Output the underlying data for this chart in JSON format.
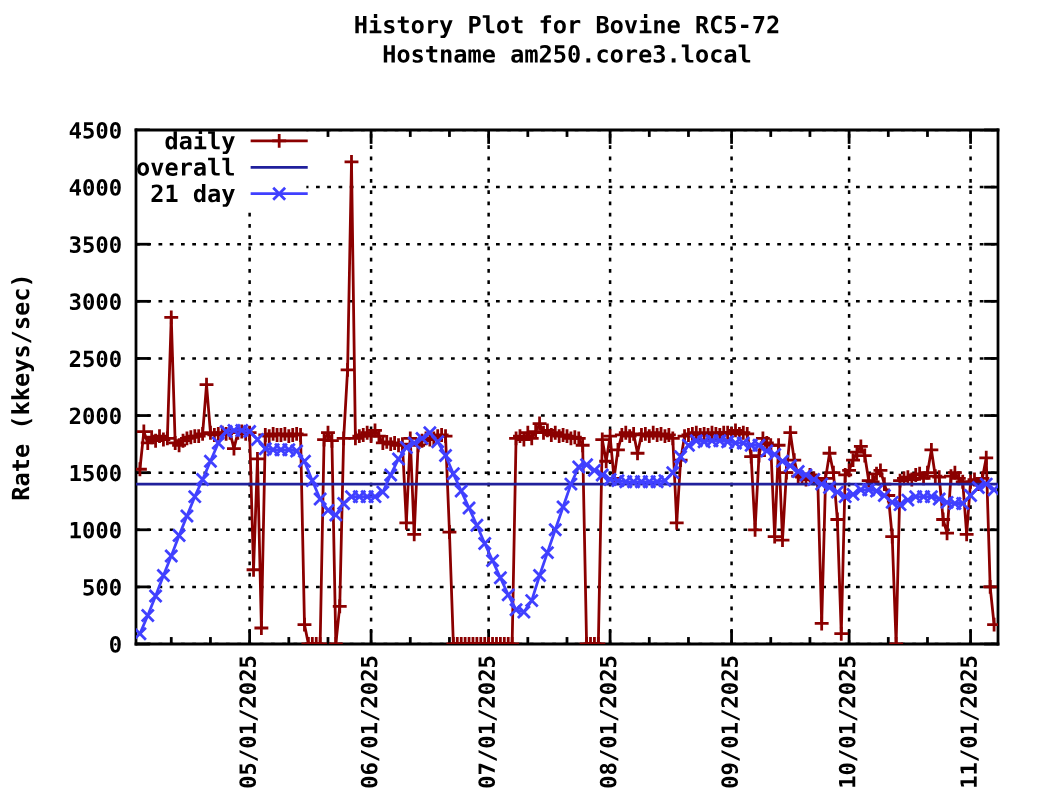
{
  "chart_data": {
    "type": "line",
    "title": "History Plot for Bovine RC5-72",
    "subtitle": "Hostname am250.core3.local",
    "ylabel": "Rate (kkeys/sec)",
    "xlim": [
      "2025-04-02",
      "2025-11-08"
    ],
    "xticks": [
      {
        "value": "2025-04-11",
        "label": null
      },
      {
        "value": "2025-04-21",
        "label": null
      },
      {
        "value": "2025-05-01",
        "label": "05/01/2025"
      },
      {
        "value": "2025-05-11",
        "label": null
      },
      {
        "value": "2025-05-21",
        "label": null
      },
      {
        "value": "2025-06-01",
        "label": "06/01/2025"
      },
      {
        "value": "2025-06-11",
        "label": null
      },
      {
        "value": "2025-06-21",
        "label": null
      },
      {
        "value": "2025-07-01",
        "label": "07/01/2025"
      },
      {
        "value": "2025-07-11",
        "label": null
      },
      {
        "value": "2025-07-21",
        "label": null
      },
      {
        "value": "2025-08-01",
        "label": "08/01/2025"
      },
      {
        "value": "2025-08-11",
        "label": null
      },
      {
        "value": "2025-08-21",
        "label": null
      },
      {
        "value": "2025-09-01",
        "label": "09/01/2025"
      },
      {
        "value": "2025-09-11",
        "label": null
      },
      {
        "value": "2025-09-21",
        "label": null
      },
      {
        "value": "2025-10-01",
        "label": "10/01/2025"
      },
      {
        "value": "2025-10-11",
        "label": null
      },
      {
        "value": "2025-10-21",
        "label": null
      },
      {
        "value": "2025-11-01",
        "label": "11/01/2025"
      }
    ],
    "ylim": [
      0,
      4500
    ],
    "yticks": [
      0,
      500,
      1000,
      1500,
      2000,
      2500,
      3000,
      3500,
      4000,
      4500
    ],
    "grid": true,
    "legend": "top left",
    "series": [
      {
        "name": "daily",
        "color": "#8b0000",
        "marker": "plus",
        "line_style": "solid",
        "x": [
          "2025-04-03",
          "2025-04-04",
          "2025-04-05",
          "2025-04-06",
          "2025-04-07",
          "2025-04-08",
          "2025-04-09",
          "2025-04-10",
          "2025-04-11",
          "2025-04-12",
          "2025-04-13",
          "2025-04-14",
          "2025-04-15",
          "2025-04-16",
          "2025-04-17",
          "2025-04-18",
          "2025-04-19",
          "2025-04-20",
          "2025-04-21",
          "2025-04-22",
          "2025-04-23",
          "2025-04-24",
          "2025-04-25",
          "2025-04-26",
          "2025-04-27",
          "2025-04-28",
          "2025-04-29",
          "2025-04-30",
          "2025-05-01",
          "2025-05-02",
          "2025-05-03",
          "2025-05-04",
          "2025-05-05",
          "2025-05-06",
          "2025-05-07",
          "2025-05-08",
          "2025-05-09",
          "2025-05-10",
          "2025-05-11",
          "2025-05-12",
          "2025-05-13",
          "2025-05-14",
          "2025-05-15",
          "2025-05-16",
          "2025-05-17",
          "2025-05-18",
          "2025-05-19",
          "2025-05-20",
          "2025-05-21",
          "2025-05-22",
          "2025-05-23",
          "2025-05-24",
          "2025-05-25",
          "2025-05-26",
          "2025-05-27",
          "2025-05-28",
          "2025-05-29",
          "2025-05-30",
          "2025-05-31",
          "2025-06-01",
          "2025-06-02",
          "2025-06-03",
          "2025-06-04",
          "2025-06-05",
          "2025-06-06",
          "2025-06-07",
          "2025-06-08",
          "2025-06-09",
          "2025-06-10",
          "2025-06-11",
          "2025-06-12",
          "2025-06-13",
          "2025-06-14",
          "2025-06-15",
          "2025-06-16",
          "2025-06-17",
          "2025-06-18",
          "2025-06-19",
          "2025-06-20",
          "2025-06-21",
          "2025-06-22",
          "2025-06-23",
          "2025-06-24",
          "2025-06-25",
          "2025-06-26",
          "2025-06-27",
          "2025-06-28",
          "2025-06-29",
          "2025-06-30",
          "2025-07-01",
          "2025-07-02",
          "2025-07-03",
          "2025-07-04",
          "2025-07-05",
          "2025-07-06",
          "2025-07-07",
          "2025-07-08",
          "2025-07-09",
          "2025-07-10",
          "2025-07-11",
          "2025-07-12",
          "2025-07-13",
          "2025-07-14",
          "2025-07-15",
          "2025-07-16",
          "2025-07-17",
          "2025-07-18",
          "2025-07-19",
          "2025-07-20",
          "2025-07-21",
          "2025-07-22",
          "2025-07-23",
          "2025-07-24",
          "2025-07-25",
          "2025-07-26",
          "2025-07-27",
          "2025-07-28",
          "2025-07-29",
          "2025-07-30",
          "2025-07-31",
          "2025-08-01",
          "2025-08-02",
          "2025-08-03",
          "2025-08-04",
          "2025-08-05",
          "2025-08-06",
          "2025-08-07",
          "2025-08-08",
          "2025-08-09",
          "2025-08-10",
          "2025-08-11",
          "2025-08-12",
          "2025-08-13",
          "2025-08-14",
          "2025-08-15",
          "2025-08-16",
          "2025-08-17",
          "2025-08-18",
          "2025-08-19",
          "2025-08-20",
          "2025-08-21",
          "2025-08-22",
          "2025-08-23",
          "2025-08-24",
          "2025-08-25",
          "2025-08-26",
          "2025-08-27",
          "2025-08-28",
          "2025-08-29",
          "2025-08-30",
          "2025-08-31",
          "2025-09-01",
          "2025-09-02",
          "2025-09-03",
          "2025-09-04",
          "2025-09-05",
          "2025-09-06",
          "2025-09-07",
          "2025-09-08",
          "2025-09-09",
          "2025-09-10",
          "2025-09-11",
          "2025-09-12",
          "2025-09-13",
          "2025-09-14",
          "2025-09-15",
          "2025-09-16",
          "2025-09-17",
          "2025-09-18",
          "2025-09-19",
          "2025-09-20",
          "2025-09-21",
          "2025-09-22",
          "2025-09-23",
          "2025-09-24",
          "2025-09-25",
          "2025-09-26",
          "2025-09-27",
          "2025-09-28",
          "2025-09-29",
          "2025-09-30",
          "2025-10-01",
          "2025-10-02",
          "2025-10-03",
          "2025-10-04",
          "2025-10-05",
          "2025-10-06",
          "2025-10-07",
          "2025-10-08",
          "2025-10-09",
          "2025-10-10",
          "2025-10-11",
          "2025-10-12",
          "2025-10-13",
          "2025-10-14",
          "2025-10-15",
          "2025-10-16",
          "2025-10-17",
          "2025-10-18",
          "2025-10-19",
          "2025-10-20",
          "2025-10-21",
          "2025-10-22",
          "2025-10-23",
          "2025-10-24",
          "2025-10-25",
          "2025-10-26",
          "2025-10-27",
          "2025-10-28",
          "2025-10-29",
          "2025-10-30",
          "2025-10-31",
          "2025-11-01",
          "2025-11-02",
          "2025-11-03",
          "2025-11-04",
          "2025-11-05",
          "2025-11-06",
          "2025-11-07"
        ],
        "values": [
          1530,
          1860,
          1760,
          1810,
          1780,
          1820,
          1790,
          1800,
          2860,
          1760,
          1740,
          1780,
          1800,
          1810,
          1820,
          1820,
          1840,
          2270,
          1850,
          1830,
          1840,
          1850,
          1840,
          1850,
          1710,
          1850,
          1860,
          1840,
          1850,
          650,
          1620,
          140,
          1830,
          1820,
          1840,
          1830,
          1830,
          1840,
          1820,
          1830,
          1840,
          1830,
          170,
          0,
          0,
          0,
          0,
          1790,
          1850,
          1780,
          0,
          330,
          1800,
          2400,
          4220,
          1800,
          1820,
          1830,
          1850,
          1820,
          1870,
          1820,
          1760,
          1770,
          1750,
          1760,
          1740,
          1750,
          1060,
          1800,
          960,
          1740,
          1780,
          1800,
          1790,
          1800,
          1820,
          1830,
          1820,
          980,
          0,
          0,
          0,
          0,
          0,
          0,
          0,
          0,
          0,
          0,
          0,
          0,
          0,
          0,
          0,
          0,
          1800,
          1820,
          1790,
          1850,
          1800,
          1860,
          1930,
          1850,
          1870,
          1830,
          1850,
          1820,
          1830,
          1820,
          1800,
          1810,
          1800,
          1740,
          0,
          0,
          0,
          0,
          1790,
          1600,
          1820,
          1450,
          1700,
          1830,
          1850,
          1820,
          1840,
          1670,
          1830,
          1840,
          1820,
          1850,
          1830,
          1840,
          1820,
          1830,
          1800,
          1060,
          1610,
          1820,
          1830,
          1840,
          1850,
          1830,
          1840,
          1830,
          1850,
          1840,
          1830,
          1850,
          1850,
          1840,
          1870,
          1840,
          1850,
          1840,
          1640,
          1000,
          1650,
          1800,
          1760,
          1740,
          940,
          1740,
          910,
          1500,
          1850,
          1610,
          1470,
          1460,
          1440,
          1480,
          1450,
          1430,
          180,
          1450,
          1670,
          1500,
          1090,
          90,
          1480,
          1520,
          1610,
          1680,
          1730,
          1650,
          1430,
          1420,
          1490,
          1520,
          1400,
          1300,
          940,
          0,
          1430,
          1450,
          1460,
          1440,
          1480,
          1490,
          1450,
          1500,
          1700,
          1470,
          1460,
          1090,
          970,
          1470,
          1500,
          1450,
          1420,
          960,
          1420,
          1440,
          1400,
          1450,
          1630,
          500,
          170
        ]
      },
      {
        "name": "overall",
        "color": "#20209c",
        "marker": "none",
        "line_style": "solid",
        "x": [
          "2025-04-02",
          "2025-11-08"
        ],
        "values": [
          1400,
          1400
        ]
      },
      {
        "name": "21 day",
        "color": "#4040ff",
        "marker": "cross",
        "line_style": "solid",
        "x": [
          "2025-04-03",
          "2025-04-05",
          "2025-04-07",
          "2025-04-09",
          "2025-04-11",
          "2025-04-13",
          "2025-04-15",
          "2025-04-17",
          "2025-04-19",
          "2025-04-21",
          "2025-04-23",
          "2025-04-25",
          "2025-04-27",
          "2025-04-29",
          "2025-05-01",
          "2025-05-03",
          "2025-05-05",
          "2025-05-07",
          "2025-05-09",
          "2025-05-11",
          "2025-05-13",
          "2025-05-15",
          "2025-05-17",
          "2025-05-19",
          "2025-05-21",
          "2025-05-23",
          "2025-05-25",
          "2025-05-27",
          "2025-05-29",
          "2025-05-31",
          "2025-06-02",
          "2025-06-04",
          "2025-06-06",
          "2025-06-08",
          "2025-06-10",
          "2025-06-12",
          "2025-06-14",
          "2025-06-16",
          "2025-06-18",
          "2025-06-20",
          "2025-06-22",
          "2025-06-24",
          "2025-06-26",
          "2025-06-28",
          "2025-06-30",
          "2025-07-02",
          "2025-07-04",
          "2025-07-06",
          "2025-07-08",
          "2025-07-10",
          "2025-07-12",
          "2025-07-14",
          "2025-07-16",
          "2025-07-18",
          "2025-07-20",
          "2025-07-22",
          "2025-07-24",
          "2025-07-26",
          "2025-07-28",
          "2025-07-30",
          "2025-08-01",
          "2025-08-03",
          "2025-08-05",
          "2025-08-07",
          "2025-08-09",
          "2025-08-11",
          "2025-08-13",
          "2025-08-15",
          "2025-08-17",
          "2025-08-19",
          "2025-08-21",
          "2025-08-23",
          "2025-08-25",
          "2025-08-27",
          "2025-08-29",
          "2025-08-31",
          "2025-09-02",
          "2025-09-04",
          "2025-09-06",
          "2025-09-08",
          "2025-09-10",
          "2025-09-12",
          "2025-09-14",
          "2025-09-16",
          "2025-09-18",
          "2025-09-20",
          "2025-09-22",
          "2025-09-24",
          "2025-09-26",
          "2025-09-28",
          "2025-09-30",
          "2025-10-02",
          "2025-10-04",
          "2025-10-06",
          "2025-10-08",
          "2025-10-10",
          "2025-10-12",
          "2025-10-14",
          "2025-10-16",
          "2025-10-18",
          "2025-10-20",
          "2025-10-22",
          "2025-10-24",
          "2025-10-26",
          "2025-10-28",
          "2025-10-30",
          "2025-11-01",
          "2025-11-03",
          "2025-11-05",
          "2025-11-07"
        ],
        "values": [
          90,
          250,
          420,
          600,
          770,
          950,
          1120,
          1290,
          1440,
          1600,
          1760,
          1860,
          1870,
          1870,
          1860,
          1790,
          1710,
          1700,
          1700,
          1700,
          1690,
          1600,
          1430,
          1270,
          1170,
          1130,
          1230,
          1290,
          1290,
          1290,
          1290,
          1330,
          1480,
          1620,
          1720,
          1760,
          1800,
          1850,
          1770,
          1650,
          1490,
          1340,
          1190,
          1040,
          880,
          730,
          580,
          430,
          300,
          280,
          380,
          600,
          800,
          1000,
          1200,
          1400,
          1550,
          1570,
          1520,
          1480,
          1440,
          1430,
          1420,
          1420,
          1420,
          1420,
          1420,
          1430,
          1500,
          1640,
          1740,
          1780,
          1770,
          1780,
          1780,
          1770,
          1760,
          1760,
          1740,
          1740,
          1690,
          1660,
          1600,
          1560,
          1510,
          1480,
          1440,
          1400,
          1370,
          1330,
          1290,
          1310,
          1350,
          1350,
          1340,
          1300,
          1240,
          1220,
          1260,
          1290,
          1290,
          1290,
          1270,
          1240,
          1230,
          1230,
          1300,
          1370,
          1400,
          1350
        ]
      }
    ]
  }
}
